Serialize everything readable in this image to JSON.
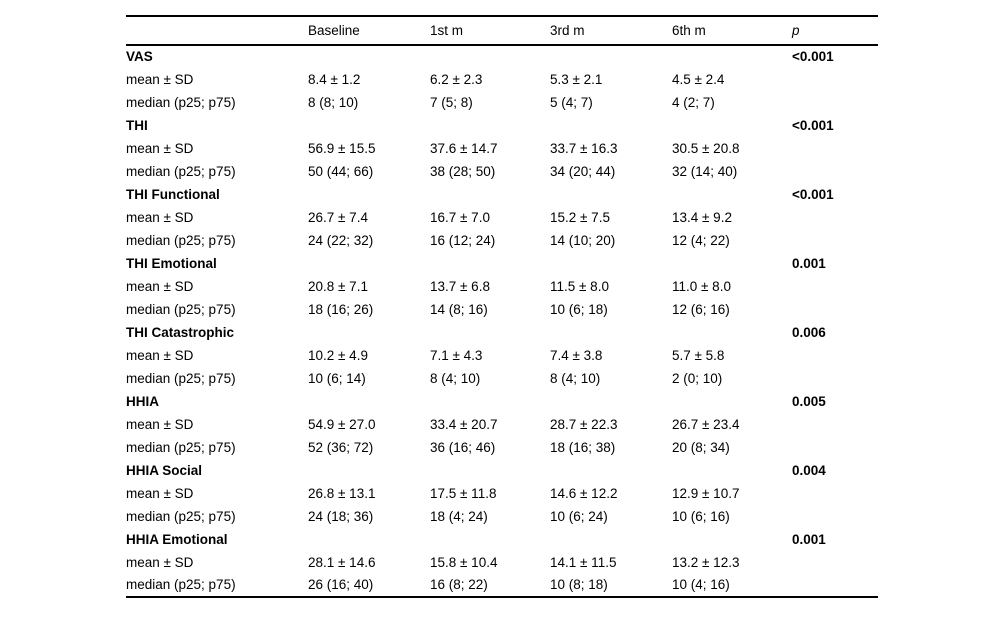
{
  "table": {
    "columns": [
      "",
      "Baseline",
      "1st m",
      "3rd m",
      "6th m",
      "p"
    ],
    "row_label_mean": "mean ± SD",
    "row_label_median": "median (p25; p75)",
    "groups": [
      {
        "name": "VAS",
        "p": "<0.001",
        "rows": [
          {
            "label": "mean ± SD",
            "values": [
              "8.4 ± 1.2",
              "6.2 ± 2.3",
              "5.3 ± 2.1",
              "4.5 ± 2.4"
            ]
          },
          {
            "label": "median (p25; p75)",
            "values": [
              "8 (8; 10)",
              "7 (5; 8)",
              "5 (4; 7)",
              "4 (2; 7)"
            ]
          }
        ]
      },
      {
        "name": "THI",
        "p": "<0.001",
        "rows": [
          {
            "label": "mean ± SD",
            "values": [
              "56.9 ± 15.5",
              "37.6 ± 14.7",
              "33.7 ± 16.3",
              "30.5 ± 20.8"
            ]
          },
          {
            "label": "median (p25; p75)",
            "values": [
              "50 (44; 66)",
              "38 (28; 50)",
              "34 (20; 44)",
              "32 (14; 40)"
            ]
          }
        ]
      },
      {
        "name": "THI Functional",
        "p": "<0.001",
        "rows": [
          {
            "label": "mean ± SD",
            "values": [
              "26.7 ± 7.4",
              "16.7 ± 7.0",
              "15.2 ± 7.5",
              "13.4 ± 9.2"
            ]
          },
          {
            "label": "median (p25; p75)",
            "values": [
              "24 (22; 32)",
              "16 (12; 24)",
              "14 (10; 20)",
              "12 (4; 22)"
            ]
          }
        ]
      },
      {
        "name": "THI Emotional",
        "p": "0.001",
        "rows": [
          {
            "label": "mean ± SD",
            "values": [
              "20.8 ± 7.1",
              "13.7 ± 6.8",
              "11.5 ± 8.0",
              "11.0 ± 8.0"
            ]
          },
          {
            "label": "median (p25; p75)",
            "values": [
              "18 (16; 26)",
              "14 (8; 16)",
              "10 (6; 18)",
              "12 (6; 16)"
            ]
          }
        ]
      },
      {
        "name": "THI Catastrophic",
        "p": "0.006",
        "rows": [
          {
            "label": "mean ± SD",
            "values": [
              "10.2 ± 4.9",
              "7.1 ± 4.3",
              "7.4 ± 3.8",
              "5.7 ± 5.8"
            ]
          },
          {
            "label": "median (p25; p75)",
            "values": [
              "10 (6; 14)",
              "8 (4; 10)",
              "8 (4; 10)",
              "2 (0; 10)"
            ]
          }
        ]
      },
      {
        "name": "HHIA",
        "p": "0.005",
        "rows": [
          {
            "label": "mean ± SD",
            "values": [
              "54.9 ± 27.0",
              "33.4 ± 20.7",
              "28.7 ± 22.3",
              "26.7 ± 23.4"
            ]
          },
          {
            "label": "median (p25; p75)",
            "values": [
              "52 (36; 72)",
              "36 (16; 46)",
              "18 (16; 38)",
              "20 (8; 34)"
            ]
          }
        ]
      },
      {
        "name": "HHIA Social",
        "p": "0.004",
        "rows": [
          {
            "label": "mean ± SD",
            "values": [
              "26.8 ± 13.1",
              "17.5 ± 11.8",
              "14.6 ± 12.2",
              "12.9 ± 10.7"
            ]
          },
          {
            "label": "median (p25; p75)",
            "values": [
              "24 (18; 36)",
              "18 (4; 24)",
              "10 (6; 24)",
              "10 (6; 16)"
            ]
          }
        ]
      },
      {
        "name": "HHIA Emotional",
        "p": "0.001",
        "rows": [
          {
            "label": "mean ± SD",
            "values": [
              "28.1 ± 14.6",
              "15.8 ± 10.4",
              "14.1 ± 11.5",
              "13.2 ± 12.3"
            ]
          },
          {
            "label": "median (p25; p75)",
            "values": [
              "26 (16; 40)",
              "16 (8; 22)",
              "10 (8; 18)",
              "10 (4; 16)"
            ]
          }
        ]
      }
    ]
  }
}
